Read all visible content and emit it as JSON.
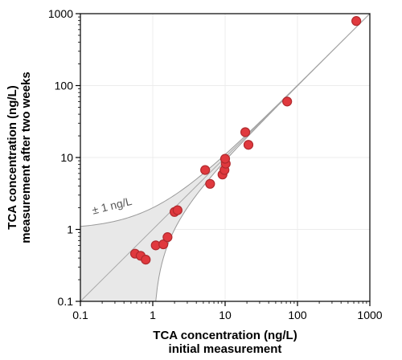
{
  "chart_data": {
    "type": "scatter",
    "xlabel": [
      "TCA concentration (ng/L)",
      "initial measurement"
    ],
    "ylabel": [
      "TCA concentration (ng/L)",
      "measurement after two weeks"
    ],
    "xscale": "log",
    "yscale": "log",
    "xlim": [
      0.1,
      1000
    ],
    "ylim": [
      0.1,
      1000
    ],
    "x_ticks": [
      "0.1",
      "1",
      "10",
      "100",
      "1000"
    ],
    "y_ticks": [
      "0.1",
      "1",
      "10",
      "100",
      "1000"
    ],
    "grid": true,
    "band_label": "± 1 ng/L",
    "reference_line": "y = x",
    "tolerance_band_ng_per_L": 1,
    "colors": {
      "points": "#e0393e",
      "band": "#e8e8e8",
      "identity_line": "#a8a8a8"
    },
    "points": [
      {
        "x": 0.57,
        "y": 0.46
      },
      {
        "x": 0.68,
        "y": 0.43
      },
      {
        "x": 0.8,
        "y": 0.38
      },
      {
        "x": 1.1,
        "y": 0.6
      },
      {
        "x": 1.4,
        "y": 0.62
      },
      {
        "x": 1.6,
        "y": 0.78
      },
      {
        "x": 2.0,
        "y": 1.75
      },
      {
        "x": 2.2,
        "y": 1.85
      },
      {
        "x": 5.3,
        "y": 6.7
      },
      {
        "x": 6.2,
        "y": 4.3
      },
      {
        "x": 9.2,
        "y": 5.8
      },
      {
        "x": 9.8,
        "y": 6.7
      },
      {
        "x": 10.2,
        "y": 8.2
      },
      {
        "x": 10.0,
        "y": 9.6
      },
      {
        "x": 19.0,
        "y": 22.5
      },
      {
        "x": 21.0,
        "y": 15.0
      },
      {
        "x": 72.0,
        "y": 60.0
      },
      {
        "x": 650.0,
        "y": 790.0
      }
    ]
  }
}
